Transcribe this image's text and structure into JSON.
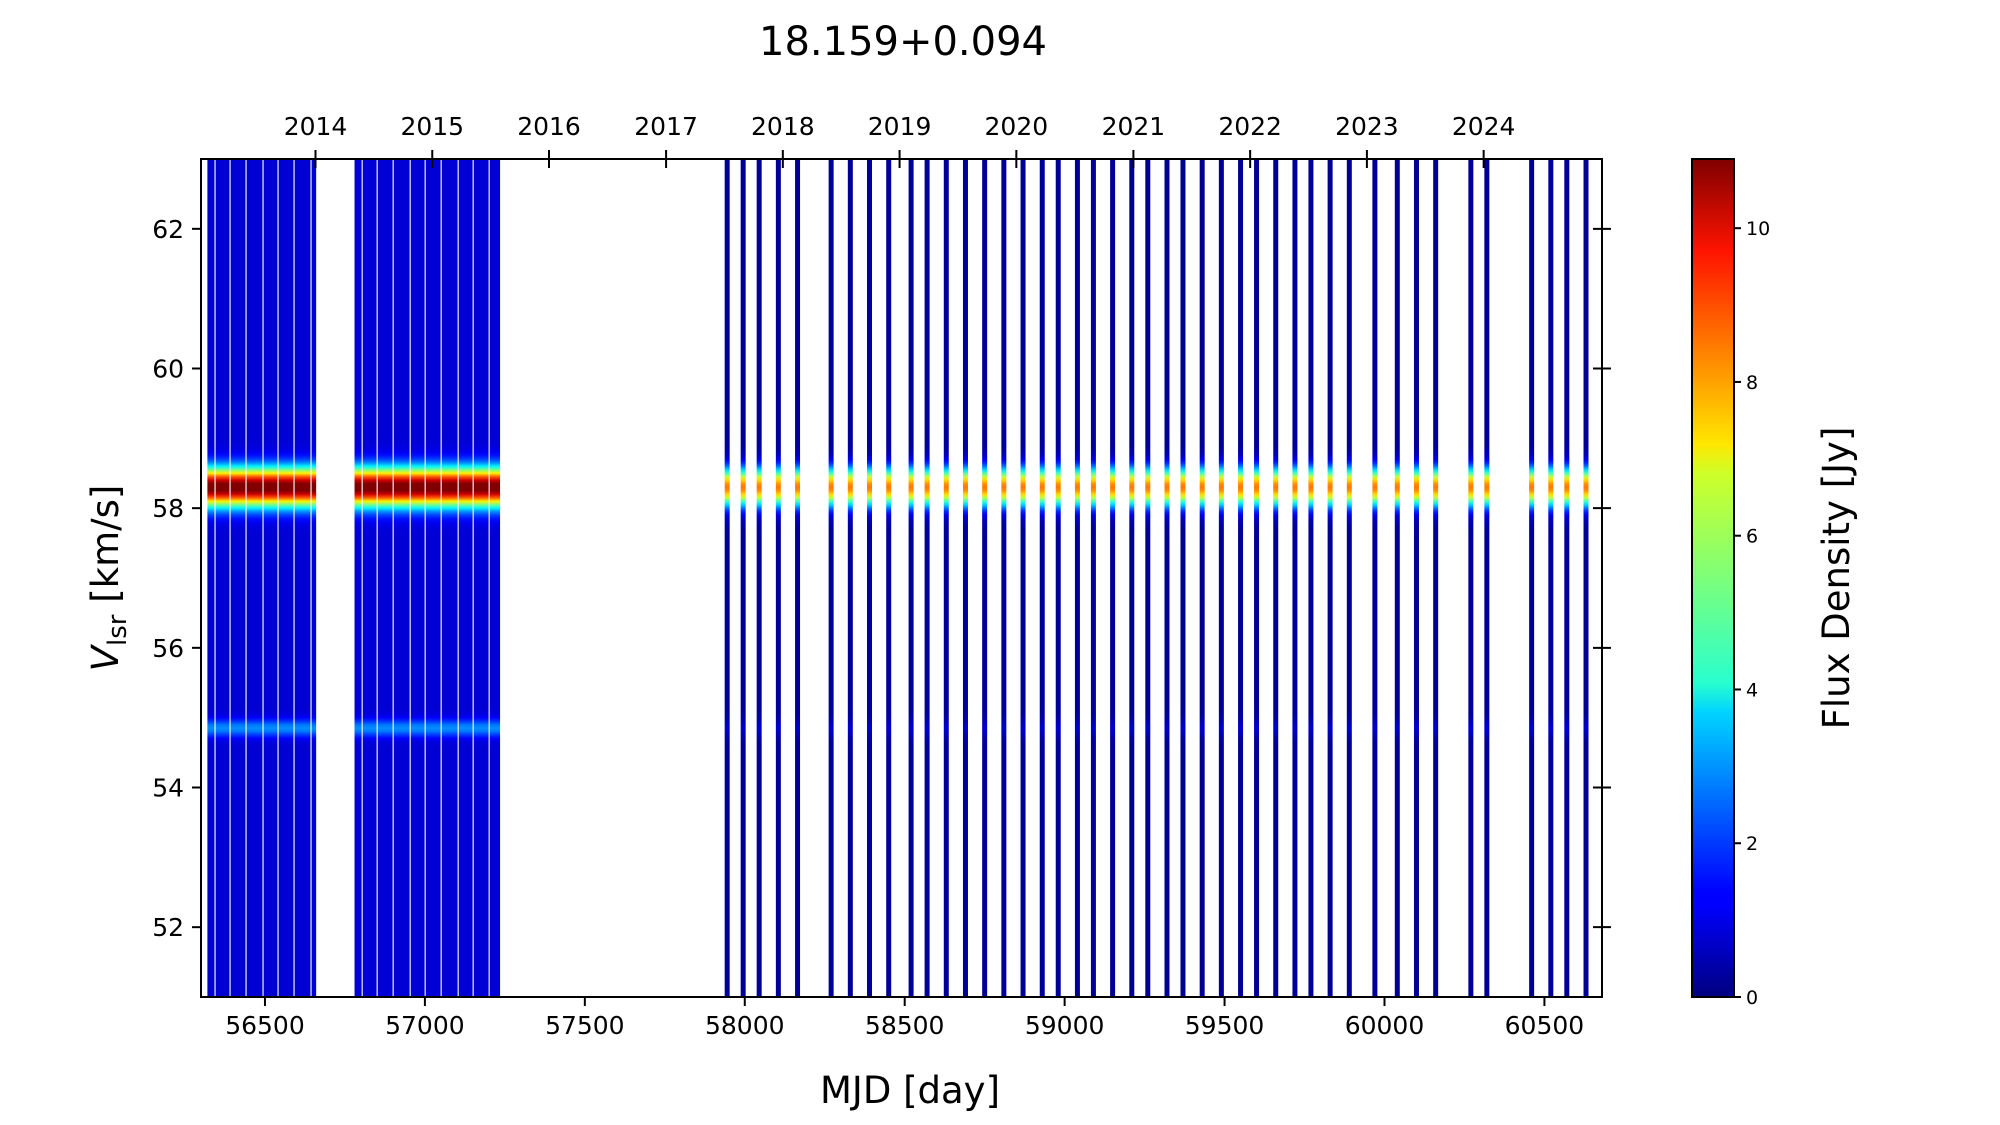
{
  "chart_data": {
    "type": "heatmap",
    "title": "18.159+0.094",
    "xlabel": "MJD [day]",
    "ylabel_main": "V",
    "ylabel_sub": "lsr",
    "ylabel_unit": " [km/s]",
    "xlim": [
      56300,
      60680
    ],
    "ylim": [
      51,
      63
    ],
    "x_ticks": [
      56500,
      57000,
      57500,
      58000,
      58500,
      59000,
      59500,
      60000,
      60500
    ],
    "x_tick_labels": [
      "56500",
      "57000",
      "57500",
      "58000",
      "58500",
      "59000",
      "59500",
      "60000",
      "60500"
    ],
    "y_ticks": [
      52,
      54,
      56,
      58,
      60,
      62
    ],
    "y_tick_labels": [
      "52",
      "54",
      "56",
      "58",
      "60",
      "62"
    ],
    "top_axis": {
      "label": "",
      "ticks_mjd": [
        56658,
        57023,
        57388,
        57754,
        58119,
        58484,
        58849,
        59215,
        59580,
        59945,
        60310
      ],
      "tick_labels": [
        "2014",
        "2015",
        "2016",
        "2017",
        "2018",
        "2019",
        "2020",
        "2021",
        "2022",
        "2023",
        "2024"
      ]
    },
    "colorbar": {
      "label": "Flux Density [Jy]",
      "colormap": "jet",
      "range": [
        0,
        10.9
      ],
      "ticks": [
        0,
        2,
        4,
        6,
        8,
        10
      ],
      "tick_labels": [
        "0",
        "2",
        "4",
        "6",
        "8",
        "10"
      ]
    },
    "spectral_features": [
      {
        "velocity_kms": 58.3,
        "peak_flux_jy_early": 10.5,
        "peak_flux_jy_late": 8.0
      },
      {
        "velocity_kms": 54.85,
        "peak_flux_jy_early": 2.0,
        "peak_flux_jy_late": 0.6
      }
    ],
    "dense_observation_blocks": [
      [
        56320,
        56660
      ],
      [
        56780,
        57235
      ]
    ],
    "observation_epochs_mjd": [
      57945,
      57995,
      58045,
      58105,
      58165,
      58270,
      58330,
      58390,
      58450,
      58520,
      58570,
      58630,
      58690,
      58750,
      58810,
      58870,
      58930,
      58980,
      59040,
      59090,
      59150,
      59210,
      59260,
      59320,
      59370,
      59430,
      59490,
      59550,
      59600,
      59660,
      59720,
      59770,
      59830,
      59890,
      59970,
      60040,
      60100,
      60160,
      60270,
      60320,
      60460,
      60520,
      60570,
      60630
    ],
    "grid": false,
    "legend": "none"
  }
}
